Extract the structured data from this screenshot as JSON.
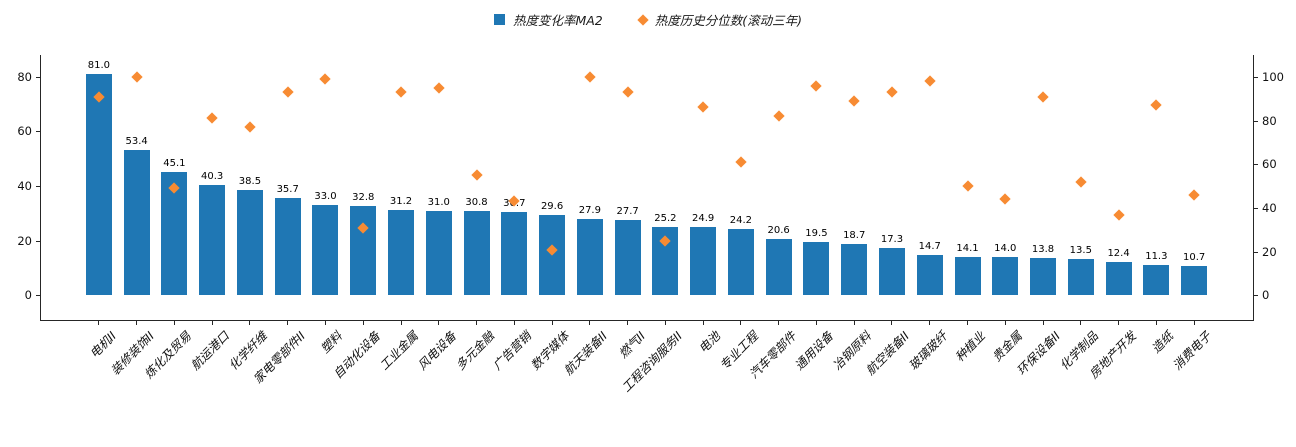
{
  "chart_data": {
    "type": "bar",
    "title": "",
    "grid": false,
    "legend_position": "top-center",
    "legend": [
      {
        "label": "热度变化率MA2",
        "marker": "square",
        "color": "#1f77b4"
      },
      {
        "label": "热度历史分位数(滚动三年)",
        "marker": "diamond",
        "color": "#f78b33"
      }
    ],
    "categories": [
      "电机II",
      "装修装饰II",
      "炼化及贸易",
      "航运港口",
      "化学纤维",
      "家电零部件II",
      "塑料",
      "自动化设备",
      "工业金属",
      "风电设备",
      "多元金融",
      "广告营销",
      "数字媒体",
      "航天装备II",
      "燃气II",
      "工程咨询服务II",
      "电池",
      "专业工程",
      "汽车零部件",
      "通用设备",
      "冶钢原料",
      "航空装备II",
      "玻璃玻纤",
      "种植业",
      "贵金属",
      "环保设备II",
      "化学制品",
      "房地产开发",
      "造纸",
      "消费电子"
    ],
    "series": [
      {
        "name": "热度变化率MA2",
        "type": "bar",
        "axis": "left",
        "color": "#1f77b4",
        "values": [
          81.0,
          53.4,
          45.1,
          40.3,
          38.5,
          35.7,
          33.0,
          32.8,
          31.2,
          31.0,
          30.8,
          30.7,
          29.6,
          27.9,
          27.7,
          25.2,
          24.9,
          24.2,
          20.6,
          19.5,
          18.7,
          17.3,
          14.7,
          14.1,
          14.0,
          13.8,
          13.5,
          12.4,
          11.3,
          10.7
        ]
      },
      {
        "name": "热度历史分位数(滚动三年)",
        "type": "scatter",
        "marker": "diamond",
        "axis": "right",
        "color": "#f78b33",
        "values": [
          91,
          100,
          49,
          81,
          77,
          93,
          99,
          31,
          93,
          95,
          55,
          43,
          21,
          100,
          93,
          25,
          86,
          61,
          82,
          96,
          89,
          93,
          98,
          50,
          44,
          91,
          52,
          37,
          87,
          46
        ]
      }
    ],
    "left_axis": {
      "ticks": [
        0,
        20,
        40,
        60,
        80
      ],
      "range": [
        -9,
        88
      ]
    },
    "right_axis": {
      "ticks": [
        0,
        20,
        40,
        60,
        80,
        100
      ],
      "range": [
        -11.25,
        110
      ]
    },
    "bar_value_labels": true
  }
}
